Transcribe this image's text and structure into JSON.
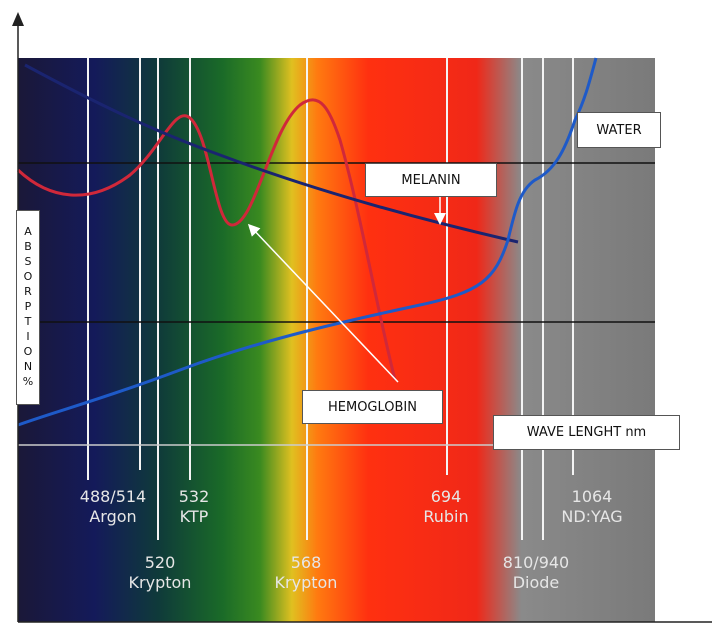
{
  "axis": {
    "y_label": "ABSORPTION%",
    "x_label": "WAVE LENGHT nm"
  },
  "curves": {
    "water": "WATER",
    "melanin": "MELANIN",
    "hemoglobin": "HEMOGLOBIN"
  },
  "lasers": [
    {
      "wavelength": "488/514",
      "name": "Argon"
    },
    {
      "wavelength": "532",
      "name": "KTP"
    },
    {
      "wavelength": "520",
      "name": "Krypton"
    },
    {
      "wavelength": "568",
      "name": "Krypton"
    },
    {
      "wavelength": "694",
      "name": "Rubin"
    },
    {
      "wavelength": "810/940",
      "name": "Diode"
    },
    {
      "wavelength": "1064",
      "name": "ND:YAG"
    }
  ]
}
